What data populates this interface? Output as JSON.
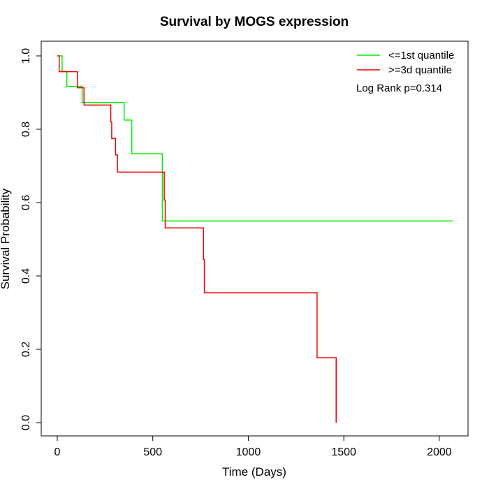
{
  "chart_data": {
    "type": "line",
    "title": "Survival by MOGS expression",
    "xlabel": "Time (Days)",
    "ylabel": "Survival Probability",
    "xlim": [
      0,
      2070
    ],
    "ylim": [
      0,
      1
    ],
    "x_ticks": [
      0,
      500,
      1000,
      1500,
      2000
    ],
    "x_tick_labels": [
      "0",
      "500",
      "1000",
      "1500",
      "2000"
    ],
    "y_ticks": [
      0,
      0.2,
      0.4,
      0.6,
      0.8,
      1.0
    ],
    "y_tick_labels": [
      "0.0",
      "0.2",
      "0.4",
      "0.6",
      "0.8",
      "1.0"
    ],
    "grid": false,
    "legend_position": "top-right",
    "annotation": "Log Rank p=0.314",
    "series": [
      {
        "name": "<=1st quantile",
        "color": "#00ee00",
        "step": true,
        "x": [
          0,
          25,
          50,
          130,
          350,
          390,
          550,
          2070
        ],
        "y": [
          1.0,
          0.958,
          0.917,
          0.873,
          0.825,
          0.733,
          0.55,
          0.55
        ]
      },
      {
        "name": ">=3d quantile",
        "color": "#ee0000",
        "step": true,
        "x": [
          0,
          10,
          105,
          140,
          280,
          285,
          305,
          315,
          560,
          565,
          765,
          770,
          1360,
          1460,
          1460
        ],
        "y": [
          1.0,
          0.957,
          0.913,
          0.866,
          0.82,
          0.775,
          0.73,
          0.683,
          0.607,
          0.531,
          0.445,
          0.354,
          0.177,
          0.177,
          0.0
        ]
      }
    ]
  }
}
